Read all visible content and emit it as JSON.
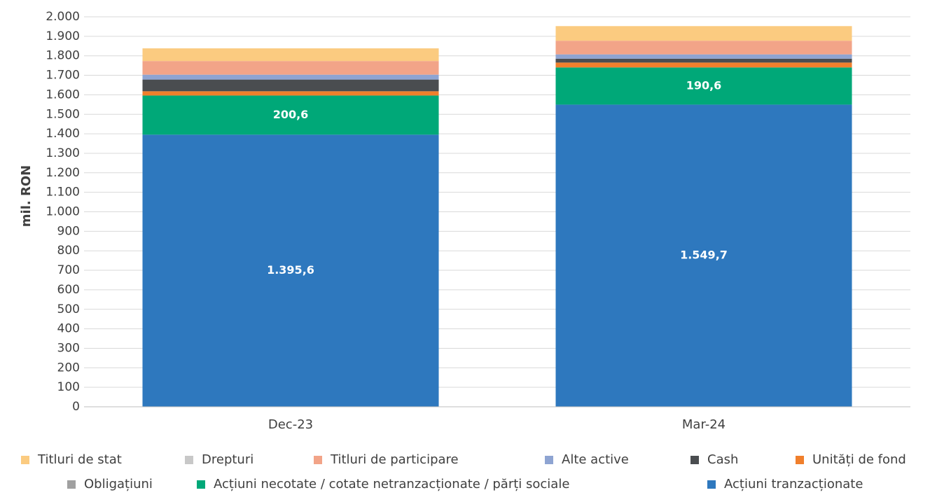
{
  "chart_data": {
    "type": "bar",
    "stacked": true,
    "y_label": "mil. RON",
    "categories": [
      "Dec-23",
      "Mar-24"
    ],
    "series": [
      {
        "name": "Titluri de stat",
        "color": "#fbcb80",
        "values": [
          65,
          75
        ]
      },
      {
        "name": "Drepturi",
        "color": "#c8c8c8",
        "values": [
          0,
          0
        ]
      },
      {
        "name": "Titluri de participare",
        "color": "#f2a488",
        "values": [
          70,
          70
        ]
      },
      {
        "name": "Alte active",
        "color": "#8ea4d2",
        "values": [
          25,
          22
        ]
      },
      {
        "name": "Cash",
        "color": "#4a4d50",
        "values": [
          60,
          20
        ]
      },
      {
        "name": "Unități de fond",
        "color": "#f07f2c",
        "values": [
          22,
          25
        ]
      },
      {
        "name": "Obligațiuni",
        "color": "#a0a0a0",
        "values": [
          0,
          0
        ]
      },
      {
        "name": "Acțiuni necotate / cotate netranzacționate / părți sociale",
        "color": "#00a878",
        "values": [
          200.6,
          190.6
        ],
        "value_labels": [
          "200,6",
          "190,6"
        ]
      },
      {
        "name": "Acțiuni tranzacționate",
        "color": "#2e78be",
        "values": [
          1395.6,
          1549.7
        ],
        "value_labels": [
          "1.395,6",
          "1.549,7"
        ]
      }
    ],
    "ylim": [
      0,
      2000
    ],
    "yticks": [
      0,
      100,
      200,
      300,
      400,
      500,
      600,
      700,
      800,
      900,
      {
        "value": 1000,
        "label": "1.000"
      },
      {
        "value": 1100,
        "label": "1.100"
      },
      {
        "value": 1200,
        "label": "1.200"
      },
      {
        "value": 1300,
        "label": "1.300"
      },
      {
        "value": 1400,
        "label": "1.400"
      },
      {
        "value": 1500,
        "label": "1.500"
      },
      {
        "value": 1600,
        "label": "1.600"
      },
      {
        "value": 1700,
        "label": "1.700"
      },
      {
        "value": 1800,
        "label": "1.800"
      },
      {
        "value": 1900,
        "label": "1.900"
      },
      {
        "value": 2000,
        "label": "2.000"
      }
    ],
    "grid": true,
    "legend": "bottom"
  }
}
